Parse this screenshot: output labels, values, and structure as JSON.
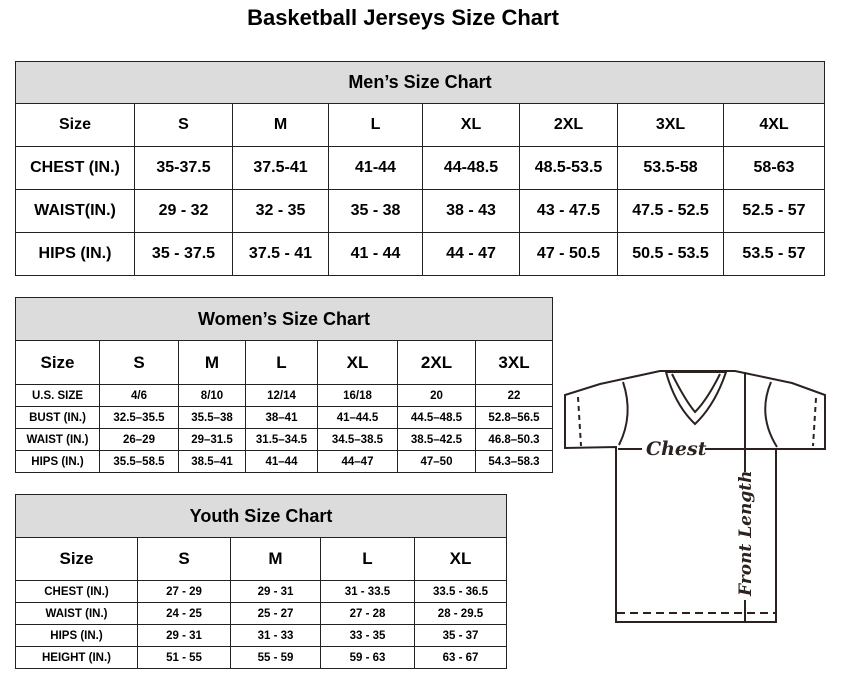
{
  "title": "Basketball Jerseys Size Chart",
  "men": {
    "title": "Men’s Size Chart",
    "sizes": [
      "Size",
      "S",
      "M",
      "L",
      "XL",
      "2XL",
      "3XL",
      "4XL"
    ],
    "rows": [
      [
        "CHEST (IN.)",
        "35-37.5",
        "37.5-41",
        "41-44",
        "44-48.5",
        "48.5-53.5",
        "53.5-58",
        "58-63"
      ],
      [
        "WAIST(IN.)",
        "29 - 32",
        "32 - 35",
        "35 - 38",
        "38 - 43",
        "43 - 47.5",
        "47.5 - 52.5",
        "52.5 - 57"
      ],
      [
        "HIPS (IN.)",
        "35 - 37.5",
        "37.5 - 41",
        "41 - 44",
        "44 - 47",
        "47 - 50.5",
        "50.5 - 53.5",
        "53.5 - 57"
      ]
    ]
  },
  "women": {
    "title": "Women’s Size Chart",
    "sizes": [
      "Size",
      "S",
      "M",
      "L",
      "XL",
      "2XL",
      "3XL"
    ],
    "rows": [
      [
        "U.S. SIZE",
        "4/6",
        "8/10",
        "12/14",
        "16/18",
        "20",
        "22"
      ],
      [
        "BUST (IN.)",
        "32.5–35.5",
        "35.5–38",
        "38–41",
        "41–44.5",
        "44.5–48.5",
        "52.8–56.5"
      ],
      [
        "WAIST (IN.)",
        "26–29",
        "29–31.5",
        "31.5–34.5",
        "34.5–38.5",
        "38.5–42.5",
        "46.8–50.3"
      ],
      [
        "HIPS (IN.)",
        "35.5–58.5",
        "38.5–41",
        "41–44",
        "44–47",
        "47–50",
        "54.3–58.3"
      ]
    ]
  },
  "youth": {
    "title": "Youth Size Chart",
    "sizes": [
      "Size",
      "S",
      "M",
      "L",
      "XL"
    ],
    "rows": [
      [
        "CHEST (IN.)",
        "27 - 29",
        "29 - 31",
        "31 - 33.5",
        "33.5 - 36.5"
      ],
      [
        "WAIST (IN.)",
        "24 - 25",
        "25 - 27",
        "27 - 28",
        "28 - 29.5"
      ],
      [
        "HIPS (IN.)",
        "29 - 31",
        "31 - 33",
        "33 - 35",
        "35 - 37"
      ],
      [
        "HEIGHT (IN.)",
        "51 - 55",
        "55 - 59",
        "59 - 63",
        "63 - 67"
      ]
    ]
  },
  "diagram": {
    "chest_label": "Chest",
    "length_label": "Front Length"
  }
}
